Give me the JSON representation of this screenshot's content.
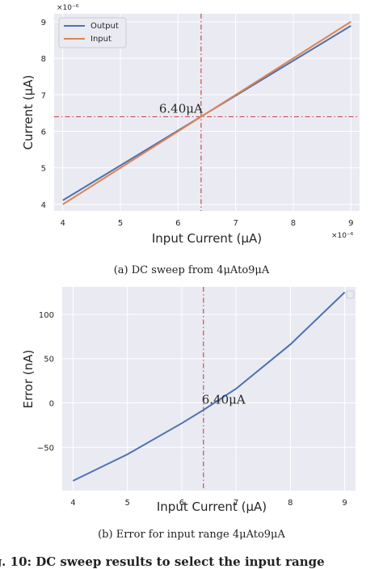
{
  "captions": {
    "a": "(a) DC sweep from 4μAto9μA",
    "b": "(b) Error for input range 4μAto9μA",
    "figure": "ig. 10: DC sweep results to select the input range"
  },
  "chart_data": [
    {
      "type": "line",
      "title": "",
      "xlabel": "Input Current (μA)",
      "ylabel": "Current (μA)",
      "x_multiplier": "×10⁻⁶",
      "y_multiplier": "×10⁻⁶",
      "xlim": [
        3.85,
        9.15
      ],
      "ylim": [
        3.82,
        9.22
      ],
      "x_ticks": [
        4,
        5,
        6,
        7,
        8,
        9
      ],
      "y_ticks": [
        4,
        5,
        6,
        7,
        8,
        9
      ],
      "grid": true,
      "legend": "top-left",
      "x": [
        4,
        9
      ],
      "series": [
        {
          "name": "Output",
          "color": "#4c72b0",
          "values": [
            4.11,
            8.89
          ]
        },
        {
          "name": "Input",
          "color": "#dd8452",
          "values": [
            4.0,
            9.0
          ]
        }
      ],
      "vline": {
        "x": 6.4,
        "color": "#c44e52"
      },
      "hline": {
        "y": 6.4,
        "color": "#c44e52"
      },
      "annotation": {
        "text": "6.40μA",
        "x": 6.4,
        "y": 6.4
      }
    },
    {
      "type": "line",
      "title": "",
      "xlabel": "Input Current (μA)",
      "ylabel": "Error (nA)",
      "xlim": [
        3.8,
        9.2
      ],
      "ylim": [
        -99,
        131
      ],
      "x_ticks": [
        4,
        5,
        6,
        7,
        8,
        9
      ],
      "y_ticks": [
        -50,
        0,
        50,
        100
      ],
      "grid": true,
      "legend": "top-right",
      "x": [
        4,
        5,
        6,
        6.4,
        7,
        8,
        9
      ],
      "series": [
        {
          "name": "",
          "color": "#4c72b0",
          "values": [
            -88,
            -58,
            -23,
            -8,
            16,
            66,
            125
          ]
        }
      ],
      "vline": {
        "x": 6.4,
        "color": "#c44e52"
      },
      "annotation": {
        "text": "6.40μA",
        "x": 6.4,
        "y": 0
      }
    }
  ]
}
